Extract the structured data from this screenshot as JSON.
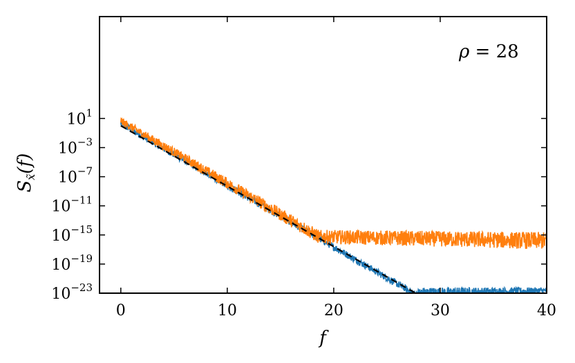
{
  "chart_data": {
    "type": "line",
    "title": "",
    "xlabel": "f",
    "ylabel": "S_x̃(f)",
    "ylabel_parts": {
      "main": "S",
      "sub": "x̃",
      "arg": "(f)"
    },
    "annotation": {
      "symbol": "ρ",
      "text": " = 28"
    },
    "xlim": [
      -2,
      40
    ],
    "ylim_log10": [
      -23,
      15
    ],
    "y_scale": "log",
    "x_ticks": [
      0,
      10,
      20,
      30,
      40
    ],
    "y_ticks_exponents": [
      1,
      -3,
      -7,
      -11,
      -15,
      -19,
      -23
    ],
    "y_tick_base": "10",
    "grid": false,
    "series": [
      {
        "color": "#1f77b4",
        "style": "noisy-solid",
        "description_points": [
          [
            0,
            0.5
          ],
          [
            19,
            -15.6
          ],
          [
            27.6,
            -23
          ],
          [
            40,
            -23
          ]
        ],
        "noise_amplitude_log10": 0.7,
        "upper_points": [
          [
            0,
            0.8
          ],
          [
            27.6,
            -22.6
          ],
          [
            28.2,
            -22.2
          ],
          [
            40,
            -22.2
          ]
        ],
        "lower_points": [
          [
            0,
            -0.2
          ],
          [
            27.6,
            -23.6
          ],
          [
            40,
            -23.1
          ]
        ]
      },
      {
        "color": "#ff7f0e",
        "style": "noisy-solid",
        "description_points": [
          [
            0,
            0.8
          ],
          [
            18.6,
            -15
          ],
          [
            40,
            -15.6
          ]
        ],
        "noise_amplitude_log10": 0.8,
        "upper_points": [
          [
            0,
            1.2
          ],
          [
            18.6,
            -14.3
          ],
          [
            40,
            -14.6
          ]
        ],
        "lower_points": [
          [
            0,
            0.1
          ],
          [
            18.6,
            -16.2
          ],
          [
            40,
            -17.0
          ]
        ]
      },
      {
        "color": "#000000",
        "style": "dashed",
        "points": [
          [
            0,
            0.0
          ],
          [
            27.7,
            -23.0
          ]
        ]
      }
    ]
  }
}
